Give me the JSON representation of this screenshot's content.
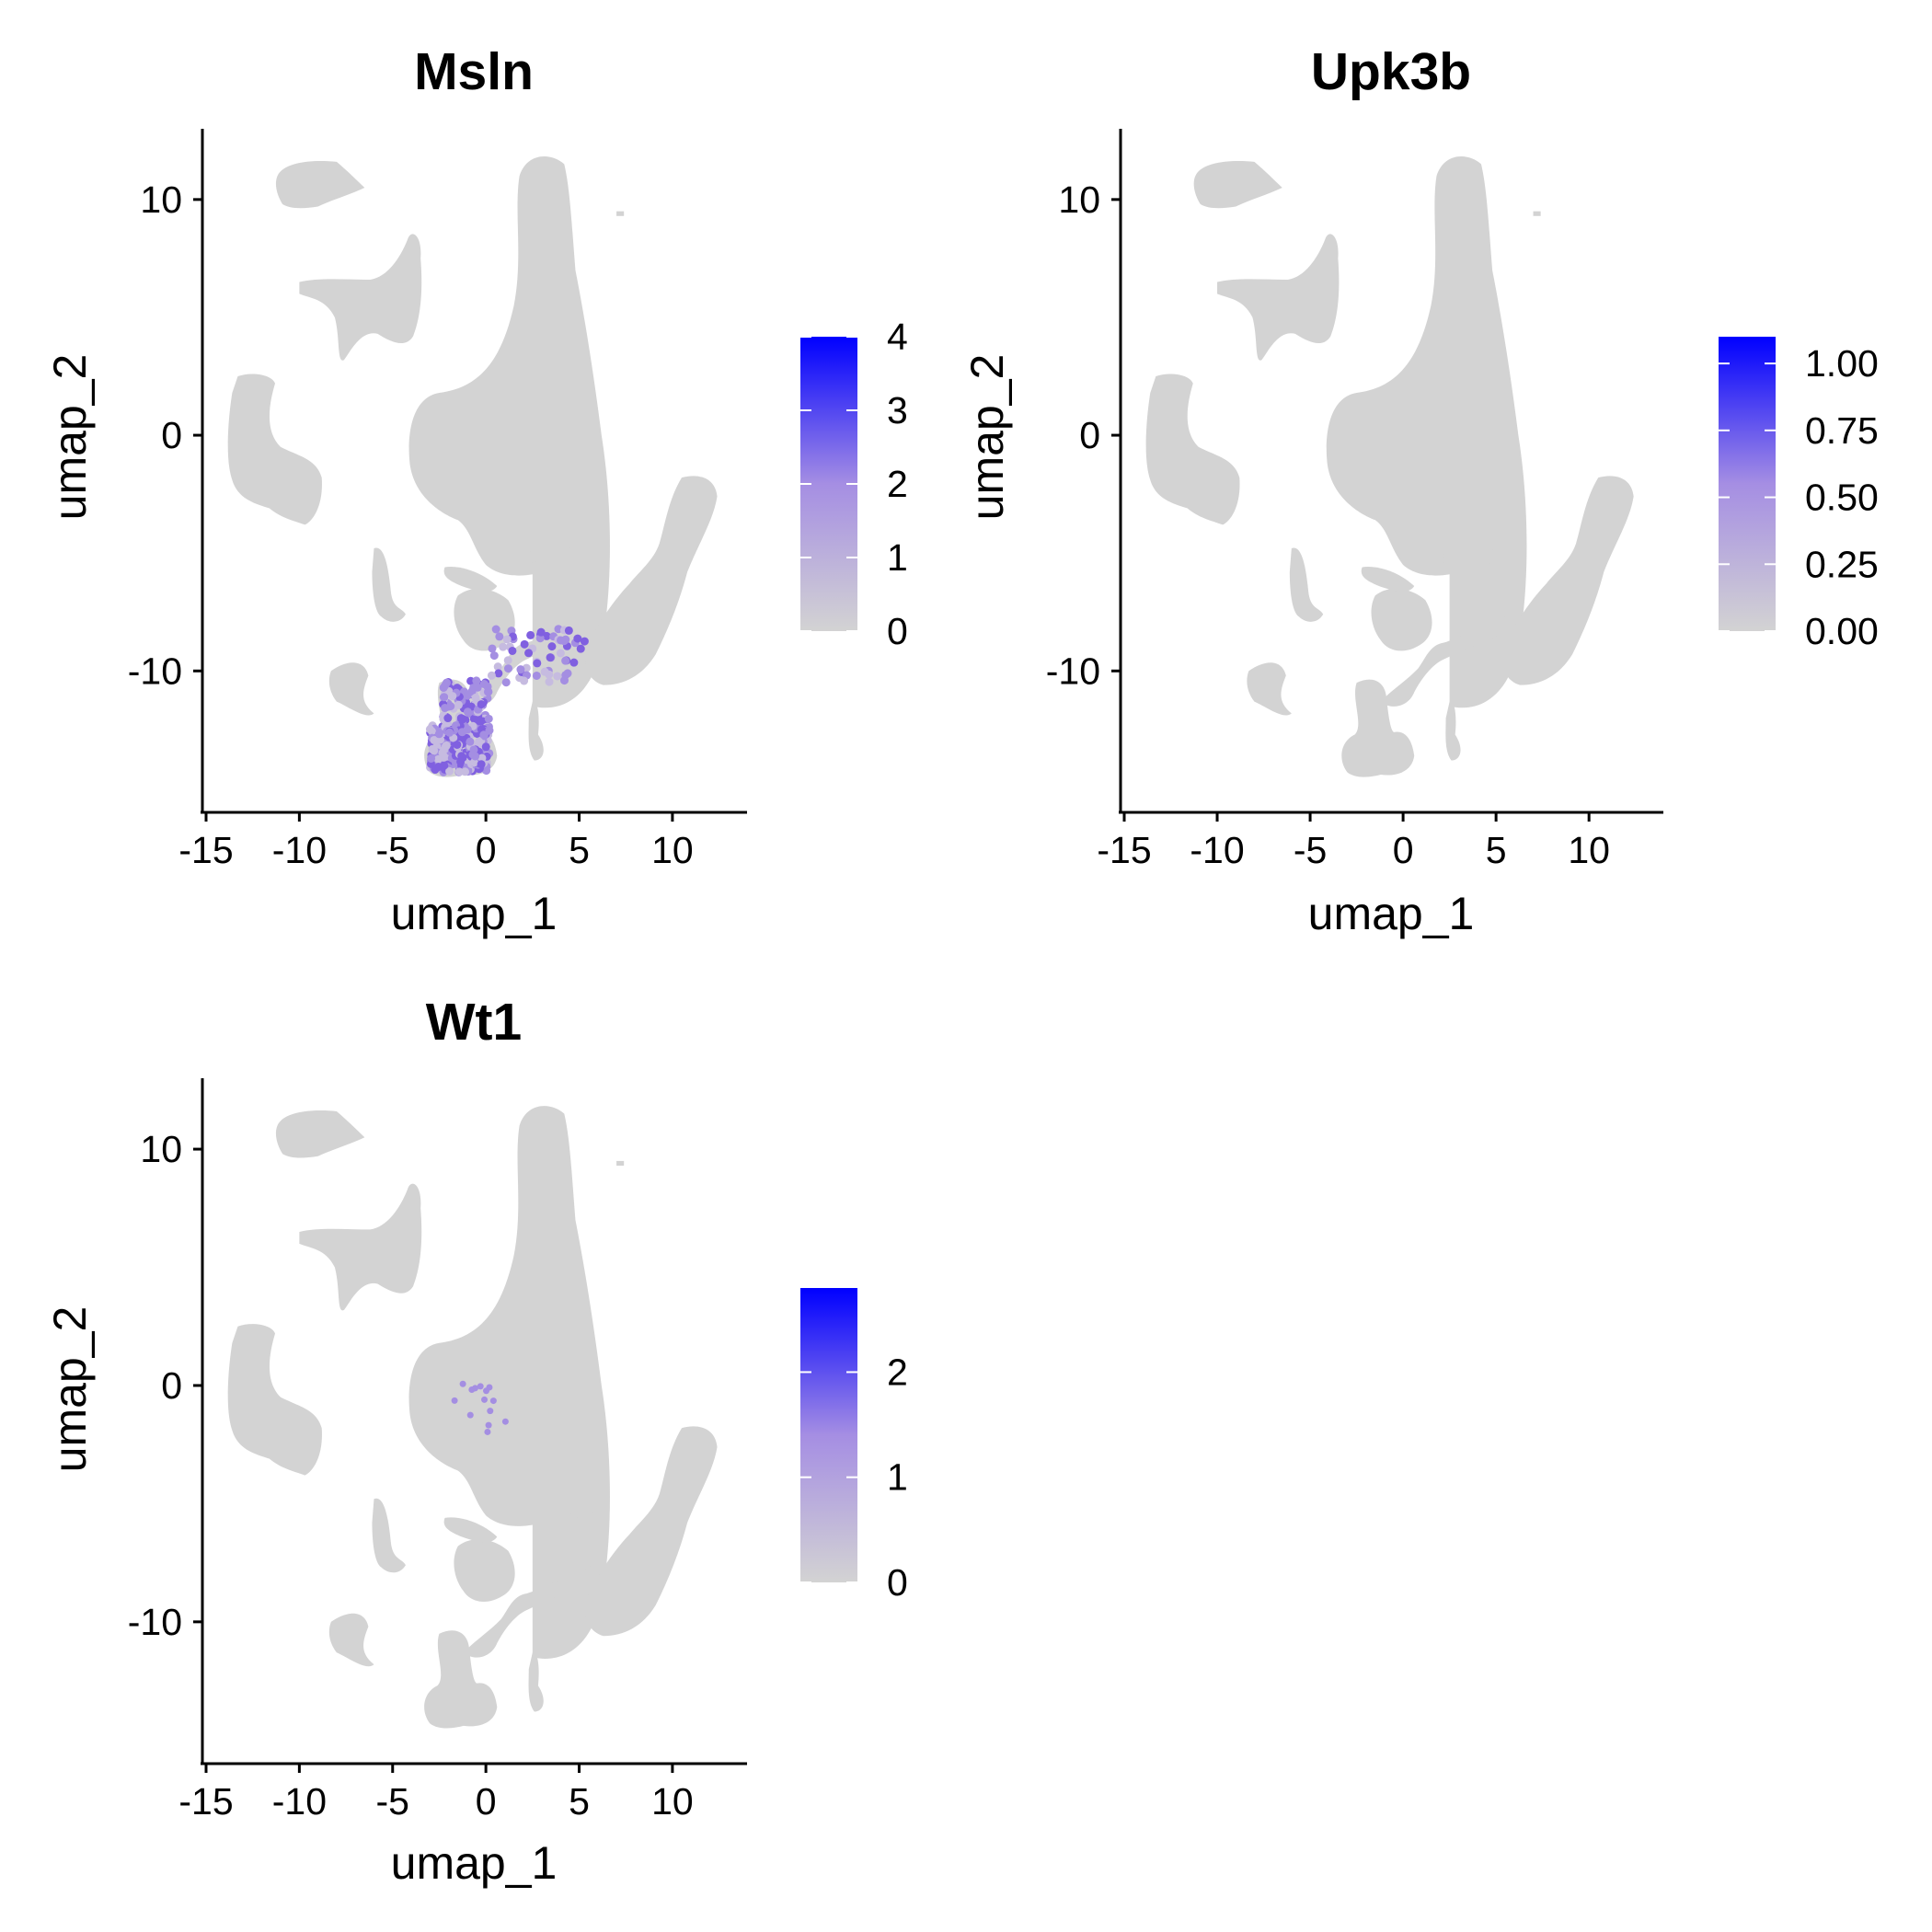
{
  "colors": {
    "low": "#d3d3d3",
    "high": "#0000ff",
    "mid": "#9e85e0",
    "axis": "#000000"
  },
  "chart_data": [
    {
      "type": "scatter",
      "title": "Msln",
      "xlabel": "umap_1",
      "ylabel": "umap_2",
      "xlim": [
        -15,
        14
      ],
      "ylim": [
        -16,
        13
      ],
      "xticks": [
        -15,
        -10,
        -5,
        0,
        5,
        10
      ],
      "yticks": [
        -10,
        0,
        10
      ],
      "legend": {
        "position": "right",
        "min": 0,
        "max": 4,
        "ticks": [
          0,
          1,
          2,
          3,
          4
        ]
      },
      "expression_cluster": "strong expression in bottom cluster around umap_1 -5 to 5, umap_2 -14 to -8"
    },
    {
      "type": "scatter",
      "title": "Upk3b",
      "xlabel": "umap_1",
      "ylabel": "umap_2",
      "xlim": [
        -15,
        14
      ],
      "ylim": [
        -16,
        13
      ],
      "xticks": [
        -15,
        -10,
        -5,
        0,
        5,
        10
      ],
      "yticks": [
        -10,
        0,
        10
      ],
      "legend": {
        "position": "right",
        "min": 0,
        "max": 1.1,
        "ticks": [
          0.0,
          0.25,
          0.5,
          0.75,
          1.0
        ],
        "tick_labels": [
          "0.00",
          "0.25",
          "0.50",
          "0.75",
          "1.00"
        ]
      },
      "expression_cluster": "near zero everywhere"
    },
    {
      "type": "scatter",
      "title": "Wt1",
      "xlabel": "umap_1",
      "ylabel": "umap_2",
      "xlim": [
        -15,
        14
      ],
      "ylim": [
        -16,
        13
      ],
      "xticks": [
        -15,
        -10,
        -5,
        0,
        5,
        10
      ],
      "yticks": [
        -10,
        0,
        10
      ],
      "legend": {
        "position": "right",
        "min": 0,
        "max": 2.8,
        "ticks": [
          0,
          1,
          2
        ]
      },
      "expression_cluster": "sparse expression in central cluster"
    }
  ]
}
